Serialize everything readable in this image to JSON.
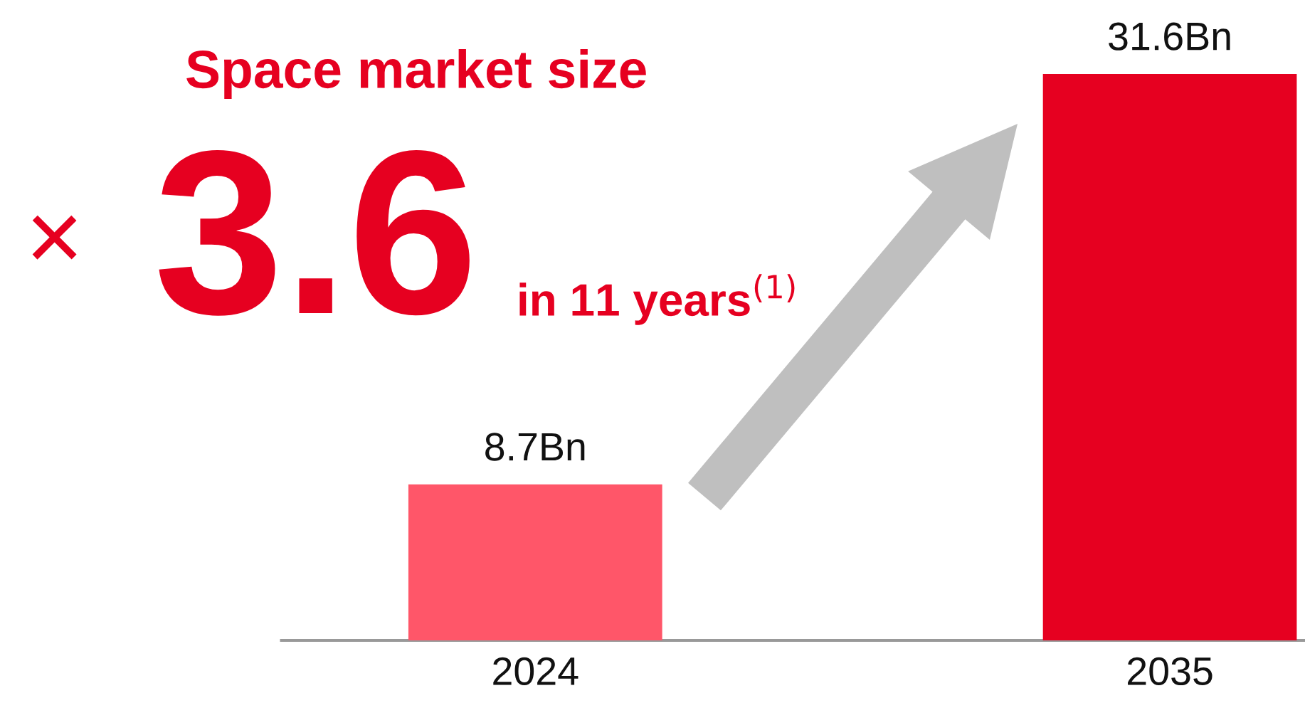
{
  "chart_data": {
    "type": "bar",
    "title": "Space market size",
    "annotations": [
      "×",
      "3.6",
      "in 11 years$^{(1)}$"
    ],
    "categories": [
      "2024",
      "2035"
    ],
    "values": [
      8.7,
      31.6
    ],
    "colors": [
      "#ff5669",
      "#e60020"
    ],
    "value_labels": [
      "8.7Bn",
      "31.6Bn"
    ]
  }
}
